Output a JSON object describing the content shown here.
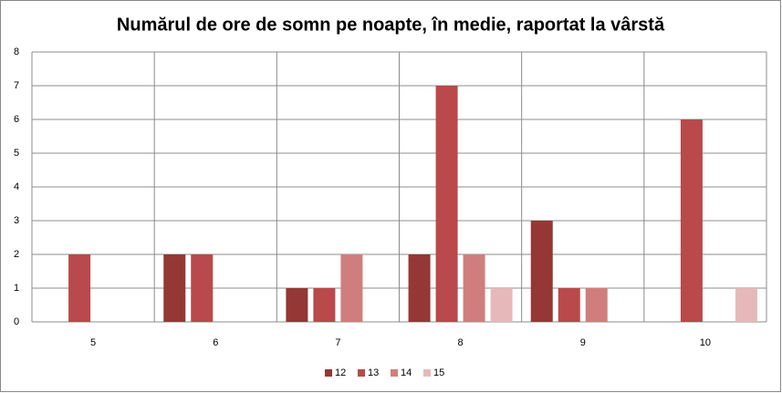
{
  "chart_data": {
    "type": "bar",
    "title": "Numărul de ore de somn pe noapte,  în medie, raportat la vârstă",
    "categories": [
      "5",
      "6",
      "7",
      "8",
      "9",
      "10"
    ],
    "series": [
      {
        "name": "12",
        "color": "#953735",
        "values": [
          0,
          2,
          1,
          2,
          3,
          0
        ]
      },
      {
        "name": "13",
        "color": "#b9494a",
        "values": [
          2,
          2,
          1,
          7,
          1,
          6
        ]
      },
      {
        "name": "14",
        "color": "#d07e7d",
        "values": [
          0,
          0,
          2,
          2,
          1,
          0
        ]
      },
      {
        "name": "15",
        "color": "#e6b9b8",
        "values": [
          0,
          0,
          0,
          1,
          0,
          1
        ]
      }
    ],
    "ylim": [
      0,
      8
    ],
    "yticks": [
      0,
      1,
      2,
      3,
      4,
      5,
      6,
      7,
      8
    ],
    "grid": true,
    "legend": "bottom"
  }
}
